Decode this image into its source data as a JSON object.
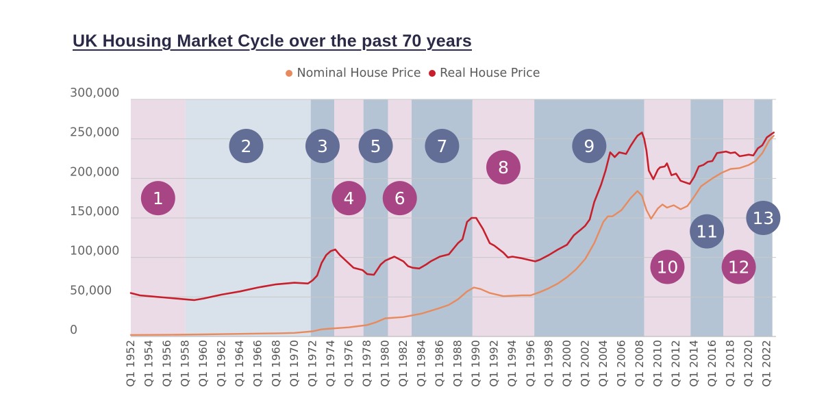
{
  "title": "UK Housing Market Cycle over the past 70 years",
  "legend": [
    {
      "label": "Nominal House Price",
      "color": "#e78a5e"
    },
    {
      "label": "Real House Price",
      "color": "#c71f2b"
    }
  ],
  "colors": {
    "boom_band": "#ebdbe7",
    "bust_band": "#b4c4d4",
    "band_2": "#d9e1ea",
    "boom_circle": "#a84685",
    "bust_circle": "#626e95",
    "nominal_line": "#e78a5e",
    "real_line": "#c71f2b",
    "gridline": "#c8c8c8"
  },
  "chart_data": {
    "type": "line",
    "title": "UK Housing Market Cycle over the past 70 years",
    "xlabel": "",
    "ylabel": "",
    "ylim": [
      0,
      300000
    ],
    "yticks": [
      0,
      50000,
      100000,
      150000,
      200000,
      250000,
      300000
    ],
    "ytick_labels": [
      "0",
      "50,000",
      "100,000",
      "150,000",
      "200,000",
      "250,000",
      "300,000"
    ],
    "xlim": [
      1952,
      2023
    ],
    "xtick_labels": [
      "Q1 1952",
      "Q1 1954",
      "Q1 1956",
      "Q1 1958",
      "Q1 1960",
      "Q1 1962",
      "Q1 1964",
      "Q1 1966",
      "Q1 1968",
      "Q1 1970",
      "Q1 1972",
      "Q1 1974",
      "Q1 1976",
      "Q1 1978",
      "Q1 1980",
      "Q1 1982",
      "Q1 1984",
      "Q1 1986",
      "Q1 1988",
      "Q1 1990",
      "Q1 1992",
      "Q1 1994",
      "Q1 1996",
      "Q1 1998",
      "Q1 2000",
      "Q1 2002",
      "Q1 2004",
      "Q1 2006",
      "Q1 2008",
      "Q1 2010",
      "Q1 2012",
      "Q1 2014",
      "Q1 2016",
      "Q1 2018",
      "Q1 2020",
      "Q1 2022"
    ],
    "grid": true,
    "legend_position": "top-center",
    "series": [
      {
        "name": "Nominal House Price",
        "color": "#e78a5e",
        "x": [
          1952,
          1956,
          1960,
          1964,
          1968,
          1970,
          1972,
          1973,
          1974,
          1976,
          1977,
          1978,
          1979,
          1980,
          1982,
          1984,
          1986,
          1987,
          1988,
          1989,
          1989.75,
          1990.5,
          1991.5,
          1993,
          1995,
          1996,
          1997,
          1998,
          1999,
          2000,
          2001,
          2002,
          2003,
          2004,
          2004.5,
          2005,
          2006,
          2007,
          2007.75,
          2008.25,
          2008.75,
          2009.25,
          2010,
          2010.5,
          2011,
          2011.75,
          2012.5,
          2013.25,
          2014,
          2014.75,
          2016,
          2017,
          2018,
          2019,
          2020,
          2020.75,
          2021.5,
          2022.25,
          2022.75
        ],
        "y": [
          1900,
          2100,
          2600,
          3300,
          4000,
          4500,
          6500,
          9000,
          10000,
          11500,
          13000,
          14500,
          18000,
          23000,
          24500,
          29000,
          36000,
          40000,
          47000,
          57000,
          62000,
          60000,
          55000,
          51000,
          52000,
          52000,
          56000,
          61000,
          67000,
          75000,
          85000,
          98000,
          118000,
          145000,
          152000,
          152000,
          160000,
          175000,
          184000,
          178000,
          160000,
          149000,
          162000,
          167000,
          163000,
          166000,
          161000,
          165000,
          177000,
          190000,
          200000,
          207000,
          212000,
          213000,
          217000,
          222000,
          232000,
          248000,
          254000
        ]
      },
      {
        "name": "Real House Price",
        "color": "#c71f2b",
        "x": [
          1952,
          1953,
          1954,
          1956,
          1958,
          1959,
          1960,
          1962,
          1964,
          1966,
          1968,
          1970,
          1971.5,
          1972,
          1972.5,
          1973,
          1973.5,
          1974,
          1974.5,
          1975,
          1975.75,
          1976.5,
          1977.5,
          1978,
          1978.75,
          1979.5,
          1980,
          1981,
          1982,
          1982.5,
          1983,
          1983.75,
          1984.5,
          1985,
          1986,
          1987,
          1988,
          1988.5,
          1989,
          1989.5,
          1990,
          1990.75,
          1991.5,
          1992,
          1993,
          1993.5,
          1994,
          1995,
          1995.75,
          1996.5,
          1997,
          1998,
          1999,
          2000,
          2000.75,
          2001.5,
          2002,
          2002.5,
          2003,
          2003.75,
          2004.25,
          2004.75,
          2005.25,
          2005.75,
          2006.5,
          2007,
          2007.5,
          2007.75,
          2008.25,
          2008.5,
          2008.75,
          2009,
          2009.5,
          2010,
          2010.25,
          2010.75,
          2011,
          2011.5,
          2012,
          2012.5,
          2013,
          2013.5,
          2014,
          2014.5,
          2015,
          2015.5,
          2016,
          2016.5,
          2017,
          2017.5,
          2018,
          2018.5,
          2019,
          2019.5,
          2020,
          2020.5,
          2021,
          2021.5,
          2022,
          2022.5,
          2022.75
        ],
        "y": [
          55000,
          52000,
          51000,
          49000,
          47000,
          46000,
          48000,
          53000,
          57000,
          62000,
          66000,
          68000,
          67000,
          71000,
          77000,
          93000,
          103000,
          108000,
          110000,
          103000,
          95000,
          87000,
          84000,
          79000,
          78000,
          91000,
          96000,
          101000,
          95000,
          89000,
          87000,
          86000,
          91000,
          95000,
          101000,
          104000,
          118000,
          123000,
          145000,
          150000,
          150000,
          136000,
          118000,
          115000,
          106000,
          100000,
          101000,
          99000,
          97000,
          95000,
          97000,
          103000,
          110000,
          116000,
          128000,
          135000,
          140000,
          148000,
          170000,
          192000,
          210000,
          233000,
          227000,
          233000,
          231000,
          241000,
          250000,
          254000,
          258000,
          250000,
          235000,
          210000,
          199000,
          211000,
          214000,
          215000,
          219000,
          204000,
          206000,
          197000,
          195000,
          193000,
          202000,
          215000,
          217000,
          221000,
          222000,
          232000,
          233000,
          234000,
          232000,
          233000,
          228000,
          229000,
          230000,
          229000,
          238000,
          242000,
          252000,
          256000,
          258000
        ]
      }
    ],
    "phases": [
      {
        "number": "1",
        "kind": "boom",
        "start": 1952,
        "end": 1958,
        "label_x": 1955.0,
        "label_y": 175000
      },
      {
        "number": "2",
        "kind": "mild",
        "start": 1958,
        "end": 1971.8,
        "label_x": 1964.7,
        "label_y": 241000
      },
      {
        "number": "3",
        "kind": "bust",
        "start": 1971.8,
        "end": 1974.4,
        "label_x": 1973.1,
        "label_y": 241000
      },
      {
        "number": "4",
        "kind": "boom",
        "start": 1974.4,
        "end": 1977.6,
        "label_x": 1976.0,
        "label_y": 175000
      },
      {
        "number": "5",
        "kind": "bust",
        "start": 1977.6,
        "end": 1980.3,
        "label_x": 1978.95,
        "label_y": 241000
      },
      {
        "number": "6",
        "kind": "boom",
        "start": 1980.3,
        "end": 1982.9,
        "label_x": 1981.6,
        "label_y": 175000
      },
      {
        "number": "7",
        "kind": "bust",
        "start": 1982.9,
        "end": 1989.6,
        "label_x": 1986.25,
        "label_y": 241000
      },
      {
        "number": "8",
        "kind": "boom",
        "start": 1989.6,
        "end": 1996.4,
        "label_x": 1993.0,
        "label_y": 214000
      },
      {
        "number": "9",
        "kind": "bust",
        "start": 1996.4,
        "end": 2008.5,
        "label_x": 2002.45,
        "label_y": 241000
      },
      {
        "number": "10",
        "kind": "boom",
        "start": 2008.5,
        "end": 2013.6,
        "label_x": 2011.05,
        "label_y": 88000
      },
      {
        "number": "11",
        "kind": "bust",
        "start": 2013.6,
        "end": 2017.2,
        "label_x": 2015.4,
        "label_y": 133000
      },
      {
        "number": "12",
        "kind": "boom",
        "start": 2017.2,
        "end": 2020.6,
        "label_x": 2018.9,
        "label_y": 88000
      },
      {
        "number": "13",
        "kind": "bust",
        "start": 2020.6,
        "end": 2022.6,
        "label_x": 2021.6,
        "label_y": 150000
      }
    ]
  }
}
